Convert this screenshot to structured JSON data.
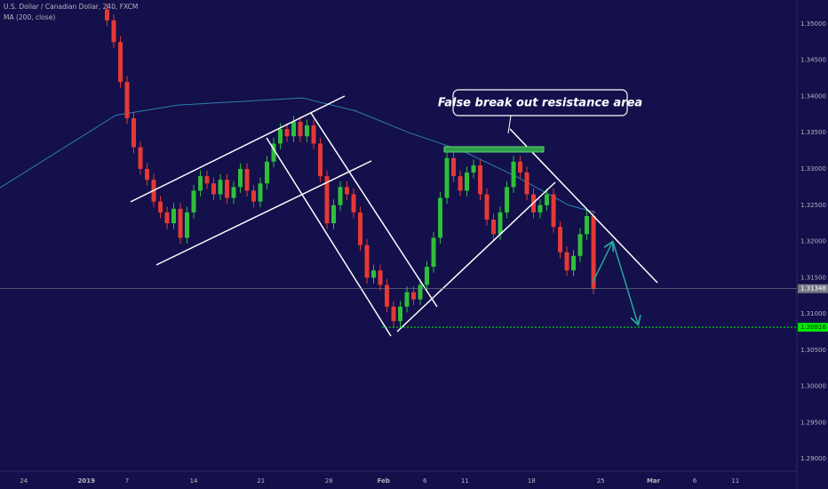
{
  "chart_data": {
    "type": "candlestick",
    "title": "U.S. Dollar / Canadian Dollar, 240, FXCM",
    "x": [
      -3,
      -2,
      -1,
      0,
      1,
      2,
      3,
      4,
      5,
      6,
      7,
      8,
      9,
      10,
      11,
      12,
      13,
      14,
      15,
      16,
      17,
      18,
      19,
      20,
      21,
      22,
      23,
      24,
      25,
      26,
      27,
      28,
      29,
      30,
      31,
      32,
      33,
      34,
      35,
      36,
      37,
      38,
      39,
      40,
      41,
      42,
      43,
      44,
      45,
      46,
      47,
      48,
      49,
      50,
      51,
      52,
      53,
      54,
      55,
      56,
      57,
      58,
      59,
      60,
      61,
      62,
      63,
      64,
      65,
      66,
      67,
      68,
      69,
      70
    ],
    "open": [
      1.352,
      1.3505,
      1.3475,
      1.342,
      1.337,
      1.333,
      1.33,
      1.3285,
      1.3255,
      1.324,
      1.3225,
      1.3245,
      1.3205,
      1.324,
      1.327,
      1.329,
      1.328,
      1.3265,
      1.3285,
      1.326,
      1.3275,
      1.33,
      1.327,
      1.3255,
      1.328,
      1.331,
      1.3335,
      1.3355,
      1.3345,
      1.3365,
      1.3345,
      1.336,
      1.3335,
      1.329,
      1.3225,
      1.325,
      1.3275,
      1.3265,
      1.324,
      1.3195,
      1.315,
      1.316,
      1.314,
      1.311,
      1.309,
      1.311,
      1.313,
      1.312,
      1.314,
      1.3165,
      1.3205,
      1.326,
      1.3315,
      1.329,
      1.327,
      1.3295,
      1.3305,
      1.3265,
      1.323,
      1.321,
      1.324,
      1.3275,
      1.331,
      1.3295,
      1.3265,
      1.324,
      1.325,
      1.3265,
      1.322,
      1.3185,
      1.316,
      1.318,
      1.321,
      1.3235
    ],
    "high": [
      1.3528,
      1.3513,
      1.3483,
      1.3428,
      1.3378,
      1.3338,
      1.3308,
      1.3293,
      1.3263,
      1.3248,
      1.3253,
      1.3253,
      1.3248,
      1.3278,
      1.3298,
      1.3298,
      1.3288,
      1.3293,
      1.3293,
      1.3283,
      1.3308,
      1.3308,
      1.3278,
      1.3288,
      1.3318,
      1.3343,
      1.3363,
      1.3363,
      1.3373,
      1.3373,
      1.3368,
      1.3368,
      1.3343,
      1.3298,
      1.3258,
      1.3283,
      1.3283,
      1.3273,
      1.3248,
      1.3203,
      1.3168,
      1.3168,
      1.3148,
      1.3118,
      1.3118,
      1.3138,
      1.3138,
      1.3148,
      1.3173,
      1.3213,
      1.3268,
      1.3323,
      1.3323,
      1.3298,
      1.3303,
      1.3313,
      1.3313,
      1.3273,
      1.3238,
      1.3248,
      1.3283,
      1.3318,
      1.3318,
      1.3303,
      1.3273,
      1.3258,
      1.3273,
      1.3273,
      1.3228,
      1.3193,
      1.3188,
      1.3218,
      1.3243,
      1.3243
    ],
    "low": [
      1.3497,
      1.3467,
      1.3412,
      1.3362,
      1.3322,
      1.3292,
      1.3277,
      1.3247,
      1.3232,
      1.3217,
      1.3217,
      1.3197,
      1.3197,
      1.3232,
      1.3262,
      1.3272,
      1.3257,
      1.3257,
      1.3252,
      1.3252,
      1.3267,
      1.3262,
      1.3247,
      1.3247,
      1.3272,
      1.3302,
      1.3327,
      1.3337,
      1.3337,
      1.3337,
      1.3337,
      1.3327,
      1.3282,
      1.3217,
      1.3217,
      1.3242,
      1.3257,
      1.3232,
      1.3187,
      1.3142,
      1.3142,
      1.3132,
      1.3102,
      1.3082,
      1.3082,
      1.3102,
      1.3112,
      1.3112,
      1.3132,
      1.3157,
      1.3197,
      1.3252,
      1.3282,
      1.3262,
      1.3262,
      1.3287,
      1.3257,
      1.3222,
      1.3202,
      1.3202,
      1.3232,
      1.3267,
      1.3287,
      1.3257,
      1.3232,
      1.3232,
      1.3242,
      1.3212,
      1.3177,
      1.3152,
      1.3152,
      1.3172,
      1.3202,
      1.3127
    ],
    "close": [
      1.3505,
      1.3475,
      1.342,
      1.337,
      1.333,
      1.33,
      1.3285,
      1.3255,
      1.324,
      1.3225,
      1.3245,
      1.3205,
      1.324,
      1.327,
      1.329,
      1.328,
      1.3265,
      1.3285,
      1.326,
      1.3275,
      1.33,
      1.327,
      1.3255,
      1.328,
      1.331,
      1.3335,
      1.3355,
      1.3345,
      1.3365,
      1.3345,
      1.336,
      1.3335,
      1.329,
      1.3225,
      1.325,
      1.3275,
      1.3265,
      1.324,
      1.3195,
      1.315,
      1.316,
      1.314,
      1.311,
      1.309,
      1.311,
      1.313,
      1.312,
      1.314,
      1.3165,
      1.3205,
      1.326,
      1.3315,
      1.329,
      1.327,
      1.3295,
      1.3305,
      1.3265,
      1.323,
      1.321,
      1.324,
      1.3275,
      1.331,
      1.3295,
      1.3265,
      1.324,
      1.325,
      1.3265,
      1.322,
      1.3185,
      1.316,
      1.318,
      1.321,
      1.3235,
      1.3135
    ],
    "up_color": "#2fbf3a",
    "down_color": "#e53935",
    "overlays": [
      {
        "name": "MA (200, close)",
        "color": "#2f7fb0",
        "x": [
          -19.07,
          -1.7,
          7.6,
          26.3,
          34.3,
          42.3,
          50.3,
          58.3,
          66.3,
          70.3
        ],
        "values": [
          1.3274,
          1.3374,
          1.3388,
          1.3398,
          1.338,
          1.335,
          1.3325,
          1.329,
          1.325,
          1.324
        ]
      }
    ],
    "annotations": [
      "False break out resistance area"
    ],
    "price_lines": [
      {
        "value": 1.31348,
        "label": "1.31348",
        "color": "#787b86"
      },
      {
        "value": 1.30816,
        "label": "1.30816",
        "color": "#00e600"
      }
    ],
    "xlim": [
      -19.07,
      100.53
    ],
    "ylim": [
      1.2883,
      1.3533
    ],
    "xticks": [
      {
        "value": -15.5,
        "label": "24"
      },
      {
        "value": -6.1,
        "label": "2019"
      },
      {
        "value": 0,
        "label": "7"
      },
      {
        "value": 10,
        "label": "14"
      },
      {
        "value": 20.1,
        "label": "21"
      },
      {
        "value": 30.3,
        "label": "28"
      },
      {
        "value": 38.5,
        "label": "Feb"
      },
      {
        "value": 44.7,
        "label": "6"
      },
      {
        "value": 50.7,
        "label": "11"
      },
      {
        "value": 60.7,
        "label": "18"
      },
      {
        "value": 71.1,
        "label": "25"
      },
      {
        "value": 79,
        "label": "Mar"
      },
      {
        "value": 85.2,
        "label": "6"
      },
      {
        "value": 91.3,
        "label": "11"
      }
    ],
    "yticks": [
      {
        "value": 1.35,
        "label": "1.35000"
      },
      {
        "value": 1.345,
        "label": "1.34500"
      },
      {
        "value": 1.34,
        "label": "1.34000"
      },
      {
        "value": 1.335,
        "label": "1.33500"
      },
      {
        "value": 1.33,
        "label": "1.33000"
      },
      {
        "value": 1.325,
        "label": "1.32500"
      },
      {
        "value": 1.32,
        "label": "1.32000"
      },
      {
        "value": 1.315,
        "label": "1.31500"
      },
      {
        "value": 1.31,
        "label": "1.31000"
      },
      {
        "value": 1.305,
        "label": "1.30500"
      },
      {
        "value": 1.3,
        "label": "1.30000"
      },
      {
        "value": 1.295,
        "label": "1.29500"
      },
      {
        "value": 1.29,
        "label": "1.29000"
      }
    ],
    "grid": false
  }
}
